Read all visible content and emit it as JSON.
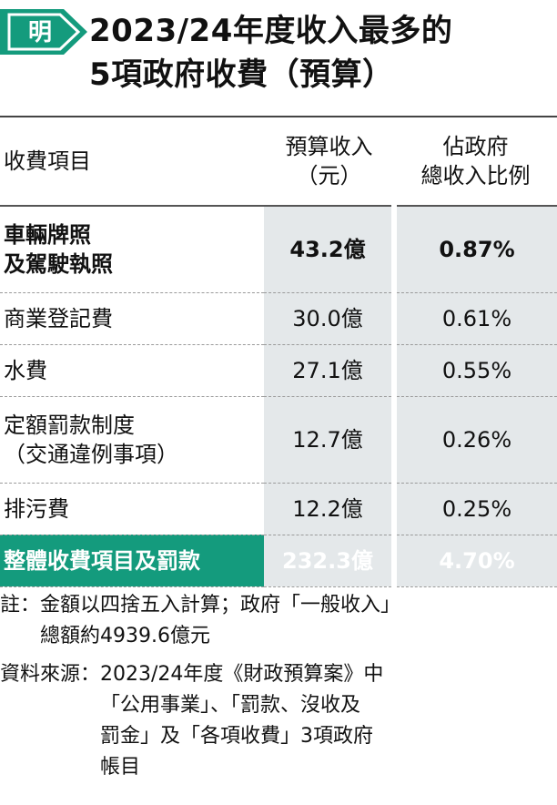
{
  "header": {
    "logo_text": "明",
    "title_line1": "2023/24年度收入最多的",
    "title_line2": "5項政府收費（預算）"
  },
  "chart_data": {
    "type": "table",
    "title": "2023/24年度收入最多的5項政府收費（預算）",
    "columns": {
      "item": "收費項目",
      "revenue_line1": "預算收入",
      "revenue_line2": "（元）",
      "share_line1": "佔政府",
      "share_line2": "總收入比例"
    },
    "rows": [
      {
        "item_line1": "車輛牌照",
        "item_line2": "及駕駛執照",
        "revenue": "43.2億",
        "share": "0.87%",
        "revenue_value": 4320000000,
        "share_value": 0.87,
        "emphasis": true
      },
      {
        "item_line1": "商業登記費",
        "item_line2": "",
        "revenue": "30.0億",
        "share": "0.61%",
        "revenue_value": 3000000000,
        "share_value": 0.61
      },
      {
        "item_line1": "水費",
        "item_line2": "",
        "revenue": "27.1億",
        "share": "0.55%",
        "revenue_value": 2710000000,
        "share_value": 0.55
      },
      {
        "item_line1": "定額罰款制度",
        "item_line2": "（交通違例事項）",
        "revenue": "12.7億",
        "share": "0.26%",
        "revenue_value": 1270000000,
        "share_value": 0.26
      },
      {
        "item_line1": "排污費",
        "item_line2": "",
        "revenue": "12.2億",
        "share": "0.25%",
        "revenue_value": 1220000000,
        "share_value": 0.25
      }
    ],
    "total": {
      "item": "整體收費項目及罰款",
      "revenue": "232.3億",
      "share": "4.70%",
      "revenue_value": 23230000000,
      "share_value": 4.7
    }
  },
  "notes": {
    "note_label": "註：",
    "note_line1": "金額以四捨五入計算；政府「一般收入」",
    "note_line2": "總額約4939.6億元",
    "source_label": "資料來源：",
    "source_line1": "2023/24年度《財政預算案》中",
    "source_line2": "「公用事業」、「罰款、沒收及",
    "source_line3": "罰金」及「各項收費」3項政府",
    "source_line4": "帳目"
  },
  "colors": {
    "accent": "#149b7d",
    "cell_shade": "#e4e8ea",
    "text": "#111111"
  },
  "icons": {
    "logo": "ming-pao-logo-icon"
  }
}
